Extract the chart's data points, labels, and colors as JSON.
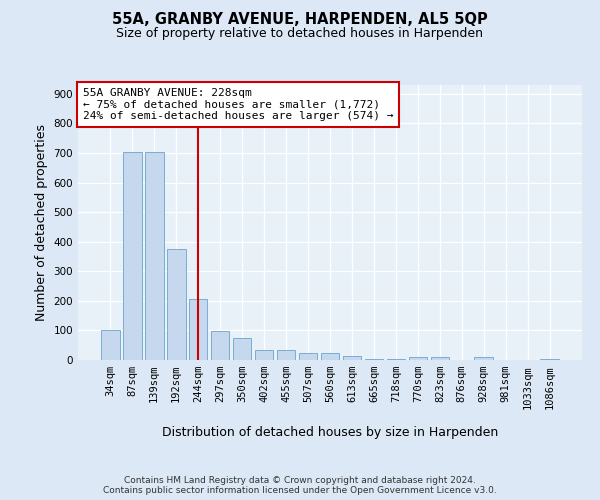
{
  "title": "55A, GRANBY AVENUE, HARPENDEN, AL5 5QP",
  "subtitle": "Size of property relative to detached houses in Harpenden",
  "xlabel": "Distribution of detached houses by size in Harpenden",
  "ylabel": "Number of detached properties",
  "categories": [
    "34sqm",
    "87sqm",
    "139sqm",
    "192sqm",
    "244sqm",
    "297sqm",
    "350sqm",
    "402sqm",
    "455sqm",
    "507sqm",
    "560sqm",
    "613sqm",
    "665sqm",
    "718sqm",
    "770sqm",
    "823sqm",
    "876sqm",
    "928sqm",
    "981sqm",
    "1033sqm",
    "1086sqm"
  ],
  "values": [
    100,
    705,
    705,
    375,
    205,
    97,
    73,
    35,
    35,
    23,
    23,
    12,
    5,
    5,
    10,
    10,
    0,
    10,
    0,
    0,
    5
  ],
  "bar_color": "#c5d8ee",
  "bar_edge_color": "#7aadd4",
  "vline_index": 4,
  "vline_color": "#cc0000",
  "annotation_line1": "55A GRANBY AVENUE: 228sqm",
  "annotation_line2": "← 75% of detached houses are smaller (1,772)",
  "annotation_line3": "24% of semi-detached houses are larger (574) →",
  "ylim": [
    0,
    930
  ],
  "yticks": [
    0,
    100,
    200,
    300,
    400,
    500,
    600,
    700,
    800,
    900
  ],
  "footer": "Contains HM Land Registry data © Crown copyright and database right 2024.\nContains public sector information licensed under the Open Government Licence v3.0.",
  "bg_color": "#dce8f5",
  "plot_bg_color": "#e8f0f8",
  "grid_color": "#ffffff",
  "title_fontsize": 10.5,
  "subtitle_fontsize": 9,
  "axis_label_fontsize": 9,
  "tick_fontsize": 7.5,
  "footer_fontsize": 6.5,
  "annot_fontsize": 8
}
